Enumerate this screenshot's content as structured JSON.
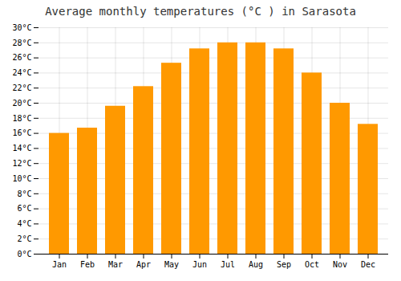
{
  "chart_data": {
    "type": "bar",
    "title": "Average monthly temperatures (°C ) in Sarasota",
    "categories": [
      "Jan",
      "Feb",
      "Mar",
      "Apr",
      "May",
      "Jun",
      "Jul",
      "Aug",
      "Sep",
      "Oct",
      "Nov",
      "Dec"
    ],
    "values": [
      16.0,
      16.7,
      19.6,
      22.2,
      25.3,
      27.2,
      28.0,
      28.0,
      27.2,
      24.0,
      20.0,
      17.2
    ],
    "color": "#FF9900",
    "ylim": [
      0,
      30
    ],
    "yticks": [
      {
        "value": 0,
        "label": "0°C"
      },
      {
        "value": 2,
        "label": "2°C"
      },
      {
        "value": 4,
        "label": "4°C"
      },
      {
        "value": 6,
        "label": "6°C"
      },
      {
        "value": 8,
        "label": "8°C"
      },
      {
        "value": 10,
        "label": "10°C"
      },
      {
        "value": 12,
        "label": "12°C"
      },
      {
        "value": 14,
        "label": "14°C"
      },
      {
        "value": 16,
        "label": "16°C"
      },
      {
        "value": 18,
        "label": "18°C"
      },
      {
        "value": 20,
        "label": "20°C"
      },
      {
        "value": 22,
        "label": "22°C"
      },
      {
        "value": 24,
        "label": "24°C"
      },
      {
        "value": 26,
        "label": "26°C"
      },
      {
        "value": 28,
        "label": "28°C"
      },
      {
        "value": 30,
        "label": "30°C"
      }
    ],
    "grid": true
  }
}
